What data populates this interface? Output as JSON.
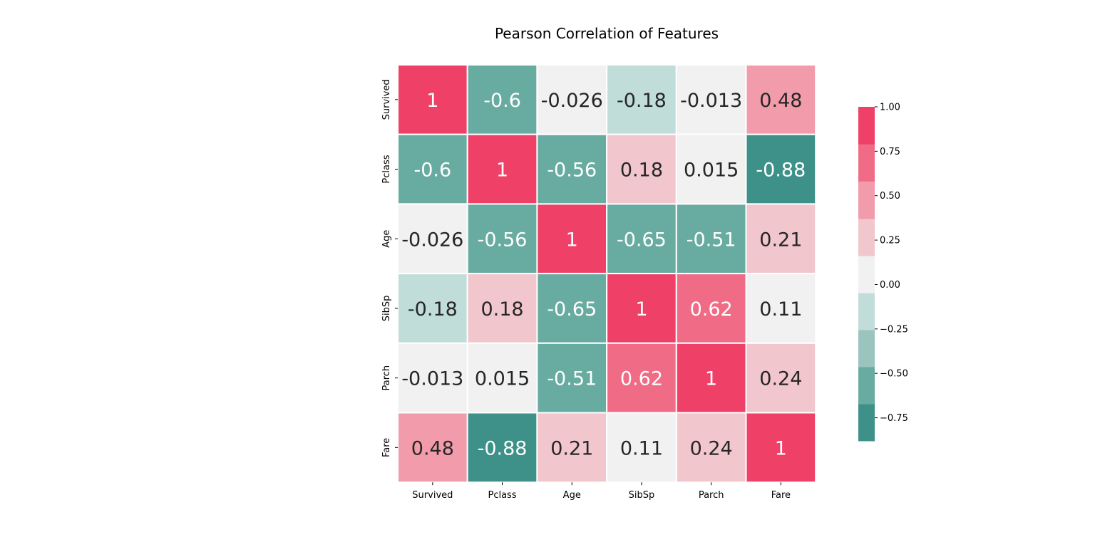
{
  "chart_data": {
    "type": "heatmap",
    "title": "Pearson Correlation of Features",
    "rows": [
      "Survived",
      "Pclass",
      "Age",
      "SibSp",
      "Parch",
      "Fare"
    ],
    "columns": [
      "Survived",
      "Pclass",
      "Age",
      "SibSp",
      "Parch",
      "Fare"
    ],
    "values": [
      [
        1,
        -0.6,
        -0.026,
        -0.18,
        -0.013,
        0.48
      ],
      [
        -0.6,
        1,
        -0.56,
        0.18,
        0.015,
        -0.88
      ],
      [
        -0.026,
        -0.56,
        1,
        -0.65,
        -0.51,
        0.21
      ],
      [
        -0.18,
        0.18,
        -0.65,
        1,
        0.62,
        0.11
      ],
      [
        -0.013,
        0.015,
        -0.51,
        0.62,
        1,
        0.24
      ],
      [
        0.48,
        -0.88,
        0.21,
        0.11,
        0.24,
        1
      ]
    ],
    "value_labels": [
      [
        "1",
        "-0.6",
        "-0.026",
        "-0.18",
        "-0.013",
        "0.48"
      ],
      [
        "-0.6",
        "1",
        "-0.56",
        "0.18",
        "0.015",
        "-0.88"
      ],
      [
        "-0.026",
        "-0.56",
        "1",
        "-0.65",
        "-0.51",
        "0.21"
      ],
      [
        "-0.18",
        "0.18",
        "-0.65",
        "1",
        "0.62",
        "0.11"
      ],
      [
        "-0.013",
        "0.015",
        "-0.51",
        "0.62",
        "1",
        "0.24"
      ],
      [
        "0.48",
        "-0.88",
        "0.21",
        "0.11",
        "0.24",
        "1"
      ]
    ],
    "colorbar": {
      "range": [
        -0.88,
        1.0
      ],
      "ticks": [
        1.0,
        0.75,
        0.5,
        0.25,
        0.0,
        -0.25,
        -0.5,
        -0.75
      ],
      "tick_labels": [
        "1.00",
        "0.75",
        "0.50",
        "0.25",
        "0.00",
        "−0.25",
        "−0.50",
        "−0.75"
      ],
      "bins": [
        {
          "from": -0.88,
          "to": -0.672,
          "color": "#3d9188"
        },
        {
          "from": -0.672,
          "to": -0.463,
          "color": "#68aba1"
        },
        {
          "from": -0.463,
          "to": -0.255,
          "color": "#9bc4be"
        },
        {
          "from": -0.255,
          "to": -0.047,
          "color": "#c1ddd9"
        },
        {
          "from": -0.047,
          "to": 0.162,
          "color": "#f1f1f1"
        },
        {
          "from": 0.162,
          "to": 0.371,
          "color": "#f1c6cd"
        },
        {
          "from": 0.371,
          "to": 0.582,
          "color": "#f19bab"
        },
        {
          "from": 0.582,
          "to": 0.791,
          "color": "#f06b86"
        },
        {
          "from": 0.791,
          "to": 1.0,
          "color": "#ef4168"
        }
      ],
      "location": "right"
    },
    "colors": {
      "text_dark": "#262626",
      "text_light": "#ffffff",
      "grid_line": "#ffffff"
    }
  }
}
